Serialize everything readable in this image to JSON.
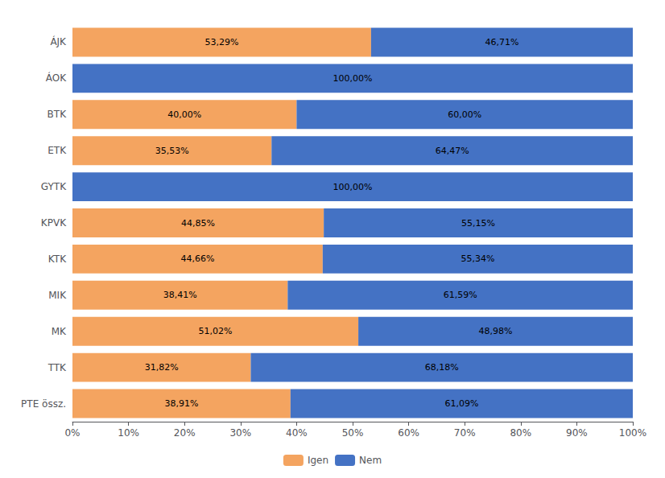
{
  "chart_data": {
    "type": "bar",
    "orientation": "horizontal",
    "stacked": true,
    "data_labels": true,
    "grid": false,
    "legend": "bottom",
    "categories": [
      "ÁJK",
      "ÁOK",
      "BTK",
      "ETK",
      "GYTK",
      "KPVK",
      "KTK",
      "MIK",
      "MK",
      "TTK",
      "PTE össz."
    ],
    "series": [
      {
        "name": "Igen",
        "color": "#F4A460",
        "values": [
          53.29,
          0.0,
          40.0,
          35.53,
          0.0,
          44.85,
          44.66,
          38.41,
          51.02,
          31.82,
          38.91
        ],
        "value_labels": [
          "53,29%",
          null,
          "40,00%",
          "35,53%",
          null,
          "44,85%",
          "44,66%",
          "38,41%",
          "51,02%",
          "31,82%",
          "38,91%"
        ]
      },
      {
        "name": "Nem",
        "color": "#4472C4",
        "values": [
          46.71,
          100.0,
          60.0,
          64.47,
          100.0,
          55.15,
          55.34,
          61.59,
          48.98,
          68.18,
          61.09
        ],
        "value_labels": [
          "46,71%",
          "100,00%",
          "60,00%",
          "64,47%",
          "100,00%",
          "55,15%",
          "55,34%",
          "61,59%",
          "48,98%",
          "68,18%",
          "61,09%"
        ]
      }
    ],
    "xlim": [
      0,
      100
    ],
    "xticks": [
      {
        "value": 0,
        "label": "0%"
      },
      {
        "value": 10,
        "label": "10%"
      },
      {
        "value": 20,
        "label": "20%"
      },
      {
        "value": 30,
        "label": "30%"
      },
      {
        "value": 40,
        "label": "40%"
      },
      {
        "value": 50,
        "label": "50%"
      },
      {
        "value": 60,
        "label": "60%"
      },
      {
        "value": 70,
        "label": "70%"
      },
      {
        "value": 80,
        "label": "80%"
      },
      {
        "value": 90,
        "label": "90%"
      },
      {
        "value": 100,
        "label": "100%"
      }
    ]
  }
}
